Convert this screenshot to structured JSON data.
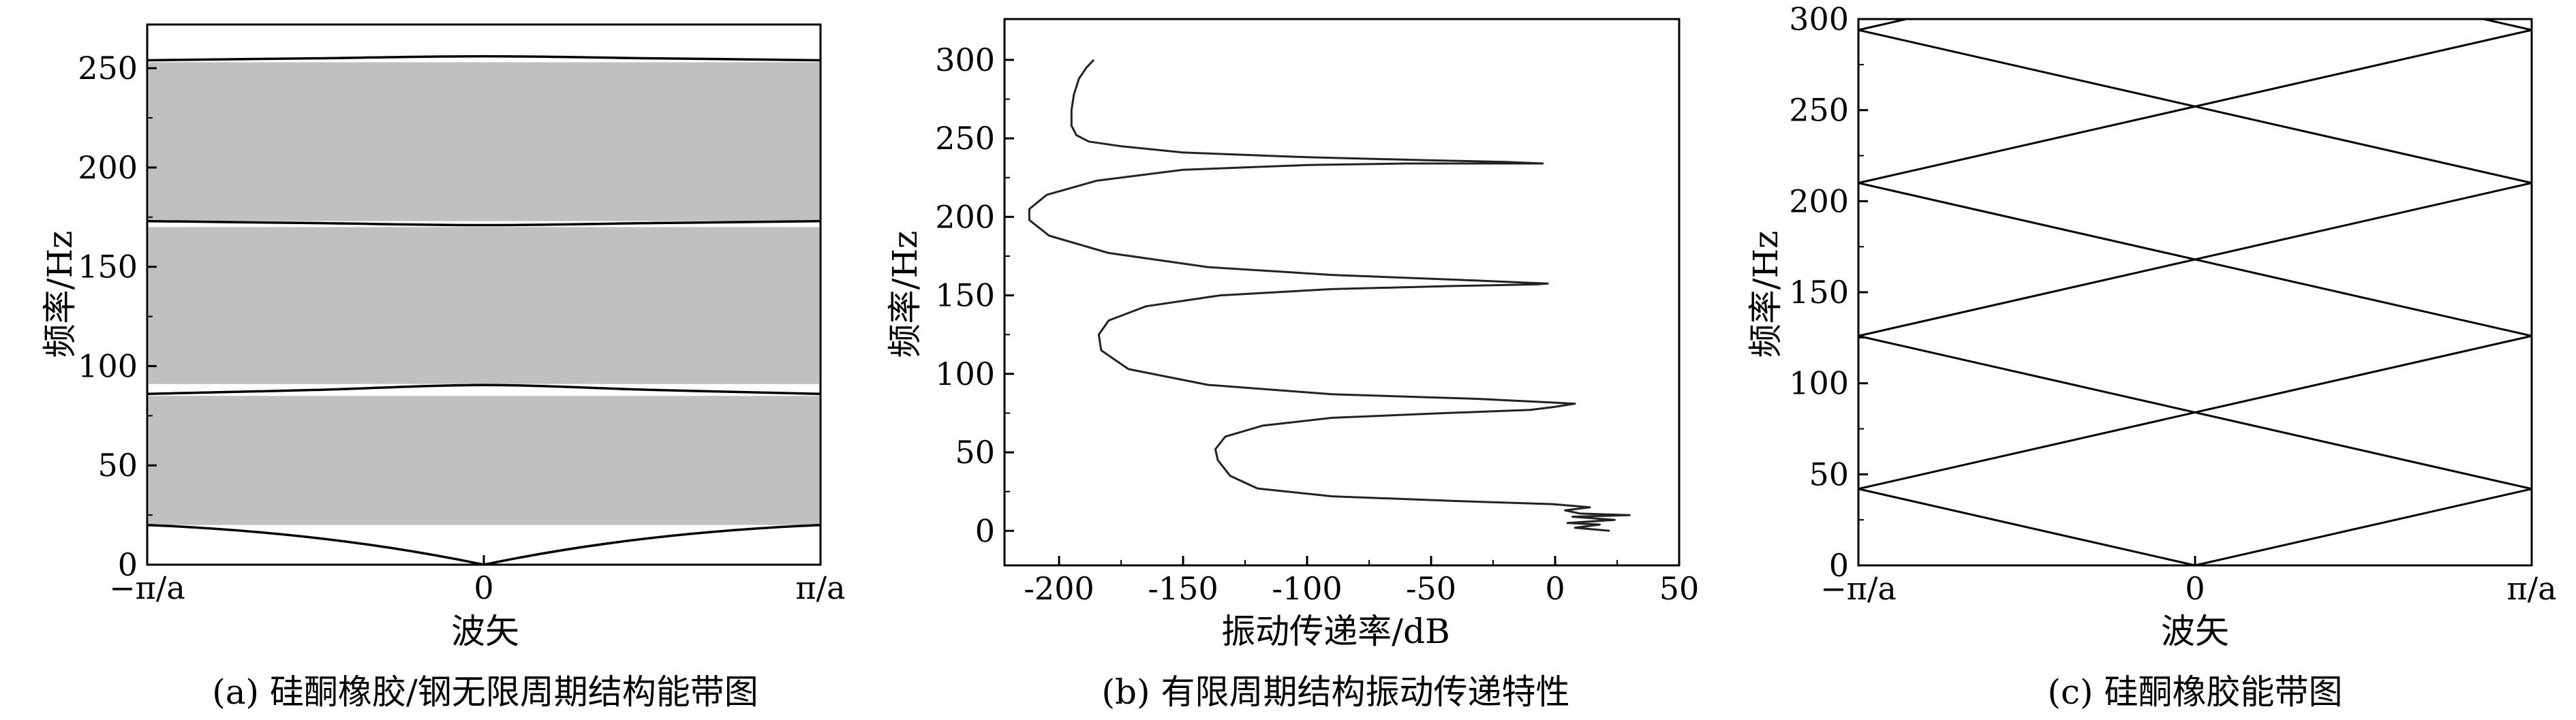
{
  "chart_data": [
    {
      "type": "area",
      "caption": "(a) 硅酮橡胶/钢无限周期结构能带图",
      "xlabel": "波矢",
      "ylabel": "频率/Hz",
      "xticks": [
        "−π/a",
        "0",
        "π/a"
      ],
      "ylim": [
        0,
        272
      ],
      "yticks": [
        0,
        50,
        100,
        150,
        200,
        250
      ],
      "grid": false,
      "band_gaps": [
        {
          "from": 20,
          "to": 85
        },
        {
          "from": 91,
          "to": 170
        },
        {
          "from": 173,
          "to": 253
        }
      ],
      "bands": [
        {
          "x": [
            -1,
            -0.5,
            0,
            0.5,
            1
          ],
          "y": [
            20,
            12,
            0,
            12,
            20
          ]
        },
        {
          "x": [
            -1,
            -0.5,
            0,
            0.5,
            1
          ],
          "y": [
            86,
            88,
            90.5,
            88,
            86
          ]
        },
        {
          "x": [
            -1,
            -0.5,
            0,
            0.5,
            1
          ],
          "y": [
            173,
            172,
            171,
            172,
            173
          ]
        },
        {
          "x": [
            -1,
            -0.5,
            0,
            0.5,
            1
          ],
          "y": [
            254,
            255,
            256,
            255,
            254
          ]
        }
      ]
    },
    {
      "type": "line",
      "caption": "(b) 有限周期结构振动传递特性",
      "xlabel": "振动传递率/dB",
      "ylabel": "频率/Hz",
      "xlim": [
        -222,
        50
      ],
      "ylim": [
        -22,
        326
      ],
      "xticks": [
        -200,
        -150,
        -100,
        -50,
        0,
        50
      ],
      "yticks": [
        0,
        50,
        100,
        150,
        200,
        250,
        300
      ],
      "grid": false,
      "series": [
        {
          "points": [
            [
              22,
              0
            ],
            [
              8,
              2
            ],
            [
              18,
              4
            ],
            [
              5,
              5
            ],
            [
              24,
              7
            ],
            [
              7,
              9
            ],
            [
              30,
              10
            ],
            [
              10,
              11
            ],
            [
              4,
              13
            ],
            [
              14,
              15
            ],
            [
              -1,
              17
            ],
            [
              -40,
              19
            ],
            [
              -90,
              22
            ],
            [
              -120,
              27
            ],
            [
              -131,
              35
            ],
            [
              -136,
              45
            ],
            [
              -137,
              52
            ],
            [
              -133,
              60
            ],
            [
              -118,
              67
            ],
            [
              -90,
              72
            ],
            [
              -45,
              75
            ],
            [
              -10,
              77
            ],
            [
              0,
              79
            ],
            [
              8,
              81
            ],
            [
              -5,
              82
            ],
            [
              -30,
              84
            ],
            [
              -90,
              87
            ],
            [
              -140,
              93
            ],
            [
              -172,
              103
            ],
            [
              -183,
              115
            ],
            [
              -184,
              125
            ],
            [
              -180,
              134
            ],
            [
              -165,
              143
            ],
            [
              -135,
              150
            ],
            [
              -90,
              154
            ],
            [
              -40,
              156
            ],
            [
              -8,
              157
            ],
            [
              -3,
              157.5
            ],
            [
              -10,
              158
            ],
            [
              -40,
              160
            ],
            [
              -90,
              163
            ],
            [
              -140,
              168
            ],
            [
              -180,
              177
            ],
            [
              -204,
              188
            ],
            [
              -212,
              198
            ],
            [
              -212,
              205
            ],
            [
              -205,
              214
            ],
            [
              -185,
              223
            ],
            [
              -150,
              230
            ],
            [
              -100,
              233
            ],
            [
              -60,
              234
            ],
            [
              -20,
              234
            ],
            [
              -5,
              234
            ],
            [
              -20,
              235
            ],
            [
              -50,
              236
            ],
            [
              -100,
              238
            ],
            [
              -150,
              241
            ],
            [
              -175,
              245
            ],
            [
              -188,
              248
            ],
            [
              -193,
              252
            ],
            [
              -195,
              258
            ],
            [
              -195,
              268
            ],
            [
              -194,
              278
            ],
            [
              -192,
              288
            ],
            [
              -189,
              295
            ],
            [
              -186,
              300
            ]
          ]
        }
      ]
    },
    {
      "type": "line",
      "caption": "(c) 硅酮橡胶能带图",
      "xlabel": "波矢",
      "ylabel": "频率/Hz",
      "xticks": [
        "−π/a",
        "0",
        "π/a"
      ],
      "ylim": [
        0,
        300
      ],
      "yticks": [
        0,
        50,
        100,
        150,
        200,
        250,
        300
      ],
      "grid": false,
      "series": [
        {
          "x": [
            -1,
            1
          ],
          "y": [
            42,
            126
          ]
        },
        {
          "x": [
            -1,
            1
          ],
          "y": [
            126,
            42
          ]
        },
        {
          "x": [
            -1,
            1
          ],
          "y": [
            126,
            210
          ]
        },
        {
          "x": [
            -1,
            1
          ],
          "y": [
            210,
            126
          ]
        },
        {
          "x": [
            -1,
            1
          ],
          "y": [
            210,
            294
          ]
        },
        {
          "x": [
            -1,
            1
          ],
          "y": [
            294,
            210
          ]
        },
        {
          "x": [
            -1,
            0
          ],
          "y": [
            42,
            0
          ]
        },
        {
          "x": [
            0,
            1
          ],
          "y": [
            0,
            42
          ]
        },
        {
          "x": [
            -1,
            -0.571
          ],
          "y": [
            294,
            312
          ]
        },
        {
          "x": [
            0.571,
            1
          ],
          "y": [
            312,
            294
          ]
        }
      ]
    }
  ]
}
